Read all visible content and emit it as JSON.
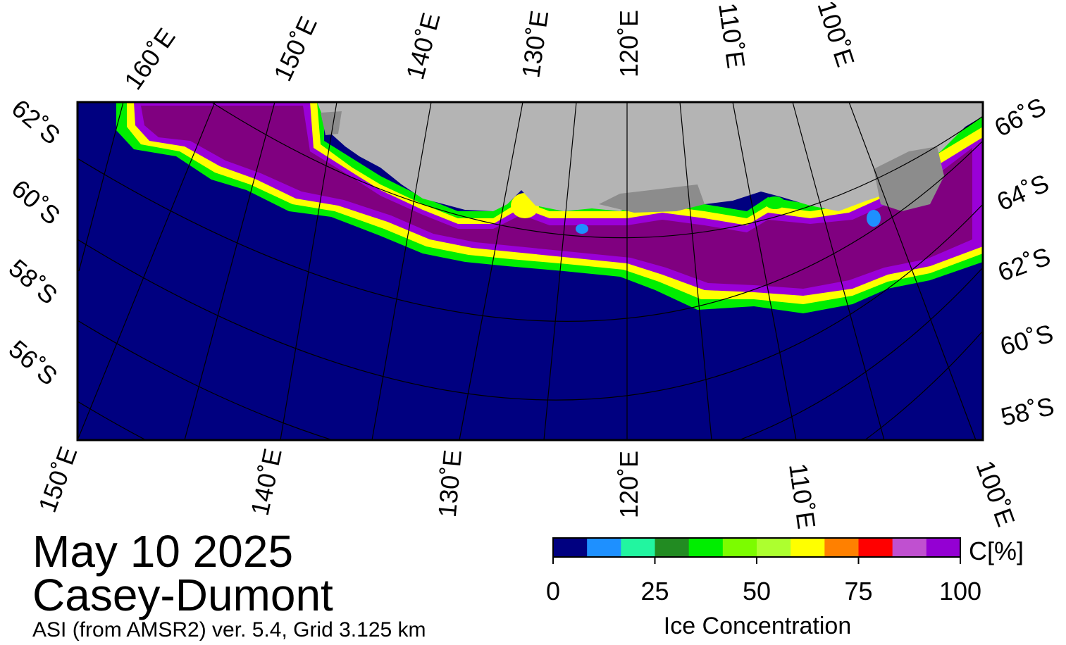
{
  "date": "May 10 2025",
  "region": "Casey-Dumont",
  "source": "ASI (from AMSR2) ver. 5.4,  Grid 3.125 km",
  "colors": {
    "ocean": "#000080",
    "land": "#b4b4b4",
    "ice_shelf": "#8c8c8c",
    "ice_high": "#800080",
    "ice_mid": "#9a00d8"
  },
  "top_lon_labels": [
    "160˚E",
    "150˚E",
    "140˚E",
    "130˚E",
    "120˚E",
    "110˚E",
    "100˚E"
  ],
  "bottom_lon_labels": [
    "150˚E",
    "140˚E",
    "130˚E",
    "120˚E",
    "110˚E",
    "100˚E"
  ],
  "left_lat_labels": [
    "62˚S",
    "60˚S",
    "58˚S",
    "56˚S"
  ],
  "right_lat_labels": [
    "66˚S",
    "64˚S",
    "62˚S",
    "60˚S",
    "58˚S"
  ],
  "colorbar": {
    "title": "Ice Concentration",
    "unit": "C[%]",
    "ticks": [
      "0",
      "25",
      "50",
      "75",
      "100"
    ],
    "colors": [
      "#000080",
      "#1e90ff",
      "#22f5a0",
      "#228b22",
      "#00ee00",
      "#7cfc00",
      "#adff2f",
      "#ffff00",
      "#ff8000",
      "#ff0000",
      "#c050d0",
      "#9400d3"
    ]
  }
}
